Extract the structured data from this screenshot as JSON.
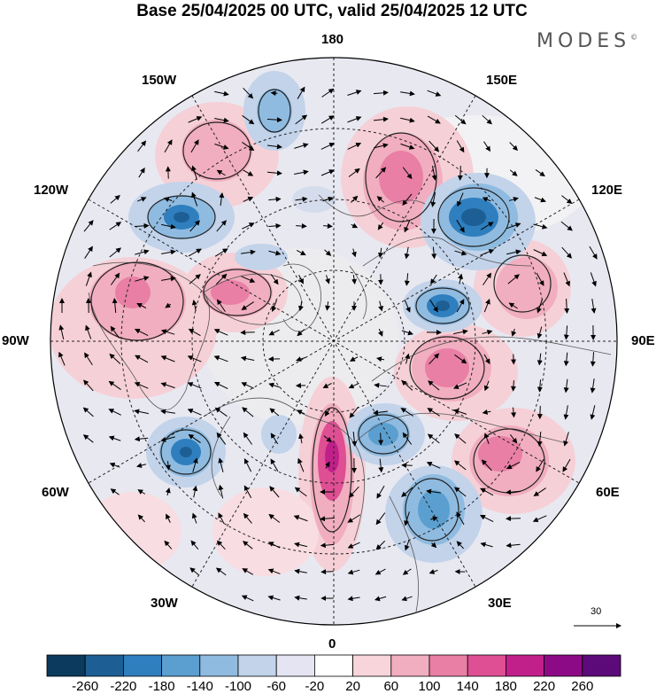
{
  "title": "Base 25/04/2025 00 UTC, valid 25/04/2025 12 UTC",
  "brand": "MODES",
  "brand_mark": "©",
  "longitude_labels": [
    "180",
    "150E",
    "120E",
    "90E",
    "60E",
    "30E",
    "0",
    "30W",
    "60W",
    "90W",
    "120W",
    "150W"
  ],
  "colorbar": {
    "labels": [
      "-260",
      "-220",
      "-180",
      "-140",
      "-100",
      "-60",
      "-20",
      "20",
      "60",
      "100",
      "140",
      "180",
      "220",
      "260"
    ],
    "colors": [
      "#0b3a5e",
      "#1d5f94",
      "#2f7fbf",
      "#5b9fd0",
      "#8fbbe0",
      "#c2d3ea",
      "#e4e4f2",
      "#ffffff",
      "#f8d5da",
      "#f1aec0",
      "#e97fa5",
      "#de4f93",
      "#c1208a",
      "#8c0a86",
      "#5c0a7a"
    ]
  },
  "vector_scale_label": "30",
  "colors": {
    "negative": "#1d5f94",
    "positive": "#c1208a",
    "neutral": "#e4e4f2",
    "land": "#dcdcdc"
  }
}
